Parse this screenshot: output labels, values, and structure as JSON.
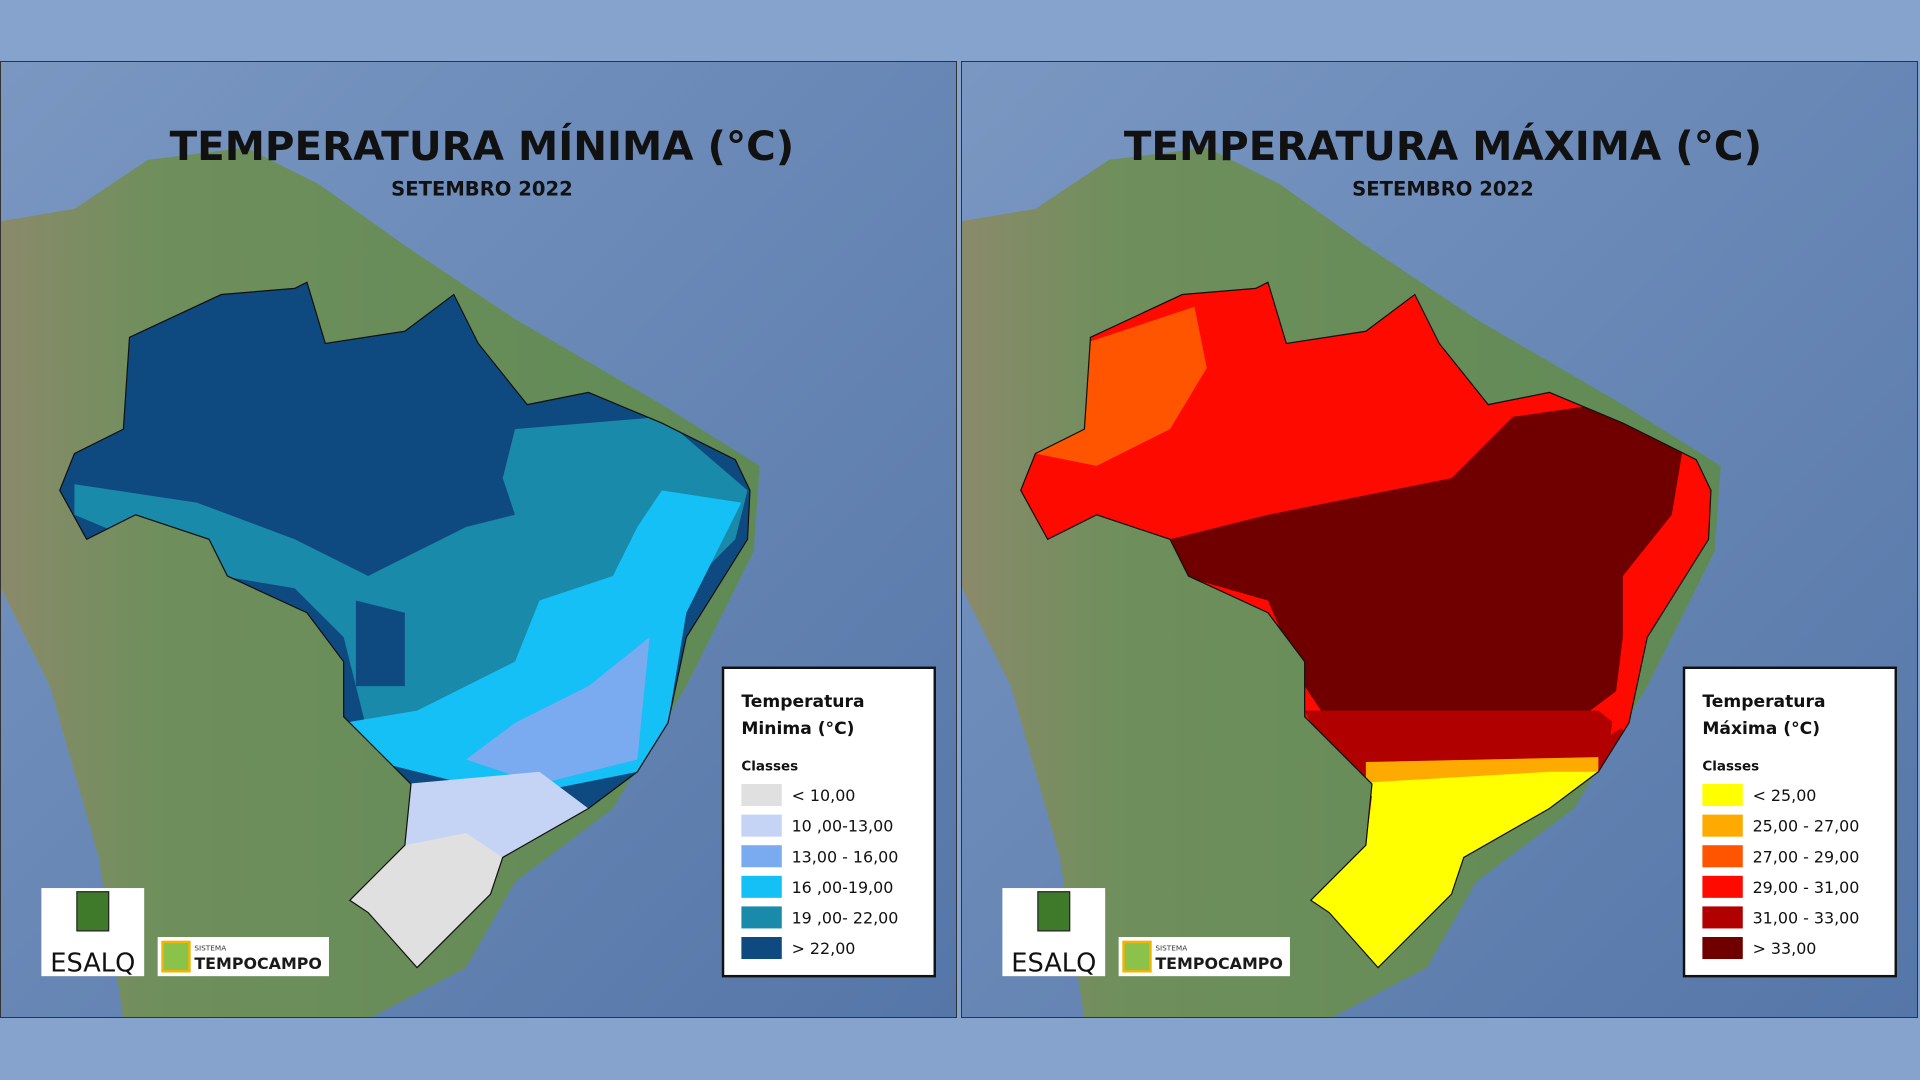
{
  "panels": [
    {
      "title": "TEMPERATURA MÍNIMA (°C)",
      "subtitle": "SETEMBRO 2022",
      "legend": {
        "title_lines": [
          "Temperatura",
          "Minima (°C)"
        ],
        "classes_label": "Classes",
        "items": [
          {
            "label": "< 10,00",
            "color": "#e0e0e0"
          },
          {
            "label": "10 ,00-13,00",
            "color": "#c5d3f5"
          },
          {
            "label": "13,00 - 16,00",
            "color": "#7aaaf0"
          },
          {
            "label": "16 ,00-19,00",
            "color": "#14c0f5"
          },
          {
            "label": "19 ,00- 22,00",
            "color": "#1a8aaa"
          },
          {
            "label": "> 22,00",
            "color": "#0e4a80"
          }
        ]
      },
      "logos": {
        "esalq": "ESALQ",
        "sistema": "SISTEMA",
        "tempocampo": "TEMPOCAMPO"
      }
    },
    {
      "title": "TEMPERATURA MÁXIMA (°C)",
      "subtitle": "SETEMBRO 2022",
      "legend": {
        "title_lines": [
          "Temperatura",
          "Máxima (°C)"
        ],
        "classes_label": "Classes",
        "items": [
          {
            "label": "< 25,00",
            "color": "#ffff00"
          },
          {
            "label": "25,00 - 27,00",
            "color": "#ffaa00"
          },
          {
            "label": "27,00 - 29,00",
            "color": "#ff5500"
          },
          {
            "label": "29,00 - 31,00",
            "color": "#ff0a00"
          },
          {
            "label": "31,00 - 33,00",
            "color": "#b00000"
          },
          {
            "label": "> 33,00",
            "color": "#700000"
          }
        ]
      },
      "logos": {
        "esalq": "ESALQ",
        "sistema": "SISTEMA",
        "tempocampo": "TEMPOCAMPO"
      }
    }
  ]
}
